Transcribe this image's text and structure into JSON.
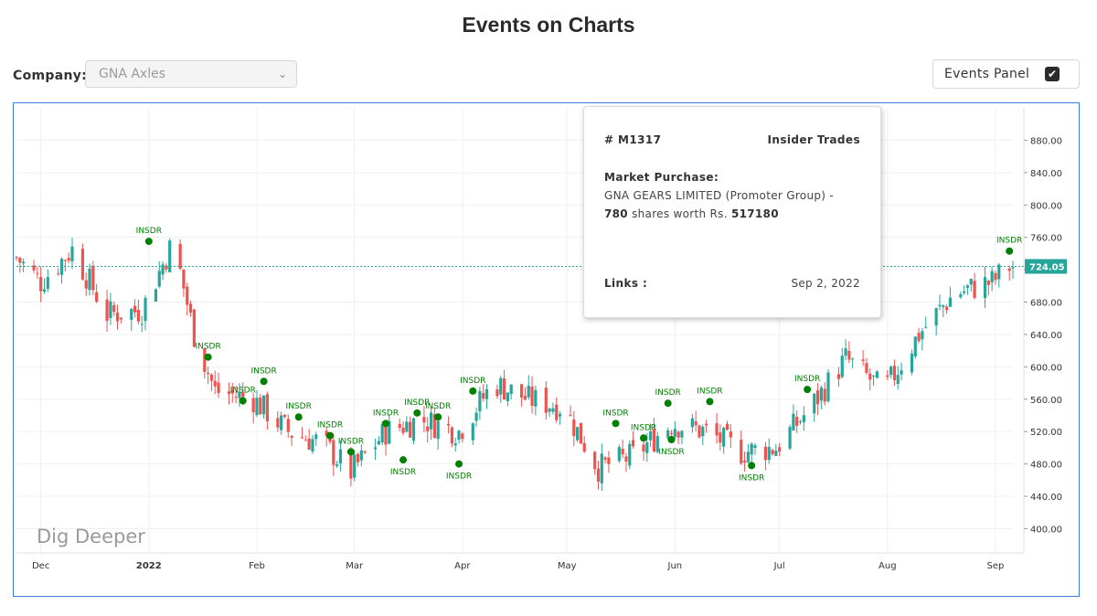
{
  "page": {
    "title": "Events on Charts"
  },
  "controls": {
    "company_label": "Company:",
    "company_value": "GNA Axles",
    "events_panel_label": "Events Panel",
    "events_panel_checked": true
  },
  "tooltip": {
    "id": "# M1317",
    "type": "Insider Trades",
    "heading": "Market Purchase:",
    "line1": "GNA GEARS LIMITED (Promoter Group) -",
    "shares": "780",
    "shares_suffix": "shares worth Rs.",
    "value": "517180",
    "links_label": "Links :",
    "date": "Sep 2, 2022"
  },
  "watermark": "Dig Deeper",
  "colors": {
    "up": "#26a69a",
    "down": "#ef5350",
    "event": "#008000",
    "frame": "#3b7fd9",
    "last_price_bg": "#26a69a"
  },
  "chart_data": {
    "type": "candlestick",
    "x_range": [
      "2021-11-24",
      "2022-09-06"
    ],
    "ylim": [
      370,
      920
    ],
    "y_ticks": [
      400,
      440,
      480,
      520,
      560,
      600,
      640,
      680,
      720,
      760,
      800,
      840,
      880
    ],
    "y_tick_labels": [
      "400.00",
      "440.00",
      "480.00",
      "520.00",
      "560.00",
      "600.00",
      "640.00",
      "680.00",
      "720.00",
      "760.00",
      "800.00",
      "840.00",
      "880.00"
    ],
    "x_ticks": [
      {
        "date": "2021-12-01",
        "label": "Dec"
      },
      {
        "date": "2022-01-01",
        "label": "2022"
      },
      {
        "date": "2022-02-01",
        "label": "Feb"
      },
      {
        "date": "2022-03-01",
        "label": "Mar"
      },
      {
        "date": "2022-04-01",
        "label": "Apr"
      },
      {
        "date": "2022-05-01",
        "label": "May"
      },
      {
        "date": "2022-06-01",
        "label": "Jun"
      },
      {
        "date": "2022-07-01",
        "label": "Jul"
      },
      {
        "date": "2022-08-01",
        "label": "Aug"
      },
      {
        "date": "2022-09-01",
        "label": "Sep"
      }
    ],
    "last_price": 724.05,
    "last_price_label": "724.05",
    "grid": true,
    "close_series": {
      "dates": [
        "2021-11-24",
        "2021-12-01",
        "2021-12-10",
        "2021-12-20",
        "2021-12-30",
        "2022-01-08",
        "2022-01-14",
        "2022-01-20",
        "2022-01-31",
        "2022-02-10",
        "2022-02-20",
        "2022-02-28",
        "2022-03-10",
        "2022-03-20",
        "2022-03-31",
        "2022-04-10",
        "2022-04-20",
        "2022-04-30",
        "2022-05-10",
        "2022-05-20",
        "2022-05-31",
        "2022-06-10",
        "2022-06-20",
        "2022-06-30",
        "2022-07-10",
        "2022-07-20",
        "2022-07-31",
        "2022-08-10",
        "2022-08-20",
        "2022-08-31",
        "2022-09-05"
      ],
      "values": [
        735,
        705,
        745,
        665,
        670,
        755,
        640,
        570,
        560,
        520,
        505,
        470,
        520,
        535,
        520,
        580,
        560,
        550,
        475,
        490,
        530,
        520,
        495,
        500,
        550,
        610,
        570,
        640,
        690,
        705,
        724
      ]
    },
    "events": [
      {
        "date": "2022-01-01",
        "value": 755,
        "label": "INSDR",
        "pos": "above"
      },
      {
        "date": "2022-01-18",
        "value": 612,
        "label": "INSDR",
        "pos": "above"
      },
      {
        "date": "2022-01-28",
        "value": 558,
        "label": "INSDR",
        "pos": "above"
      },
      {
        "date": "2022-02-03",
        "value": 582,
        "label": "INSDR",
        "pos": "above"
      },
      {
        "date": "2022-02-13",
        "value": 538,
        "label": "INSDR",
        "pos": "above"
      },
      {
        "date": "2022-02-22",
        "value": 515,
        "label": "INSDR",
        "pos": "above"
      },
      {
        "date": "2022-02-28",
        "value": 495,
        "label": "INSDR",
        "pos": "above"
      },
      {
        "date": "2022-03-10",
        "value": 530,
        "label": "INSDR",
        "pos": "above"
      },
      {
        "date": "2022-03-15",
        "value": 485,
        "label": "INSDR",
        "pos": "below"
      },
      {
        "date": "2022-03-19",
        "value": 543,
        "label": "INSDR",
        "pos": "above"
      },
      {
        "date": "2022-03-25",
        "value": 538,
        "label": "INSDR",
        "pos": "above"
      },
      {
        "date": "2022-03-31",
        "value": 480,
        "label": "INSDR",
        "pos": "below"
      },
      {
        "date": "2022-04-04",
        "value": 570,
        "label": "INSDR",
        "pos": "above"
      },
      {
        "date": "2022-05-15",
        "value": 530,
        "label": "INSDR",
        "pos": "above"
      },
      {
        "date": "2022-05-23",
        "value": 512,
        "label": "INSDR",
        "pos": "above"
      },
      {
        "date": "2022-05-30",
        "value": 555,
        "label": "INSDR",
        "pos": "above"
      },
      {
        "date": "2022-05-31",
        "value": 510,
        "label": "INSDR",
        "pos": "below"
      },
      {
        "date": "2022-06-11",
        "value": 557,
        "label": "INSDR",
        "pos": "above"
      },
      {
        "date": "2022-06-23",
        "value": 478,
        "label": "INSDR",
        "pos": "below"
      },
      {
        "date": "2022-07-09",
        "value": 572,
        "label": "INSDR",
        "pos": "above"
      },
      {
        "date": "2022-09-05",
        "value": 743,
        "label": "INSDR",
        "pos": "above"
      }
    ]
  }
}
